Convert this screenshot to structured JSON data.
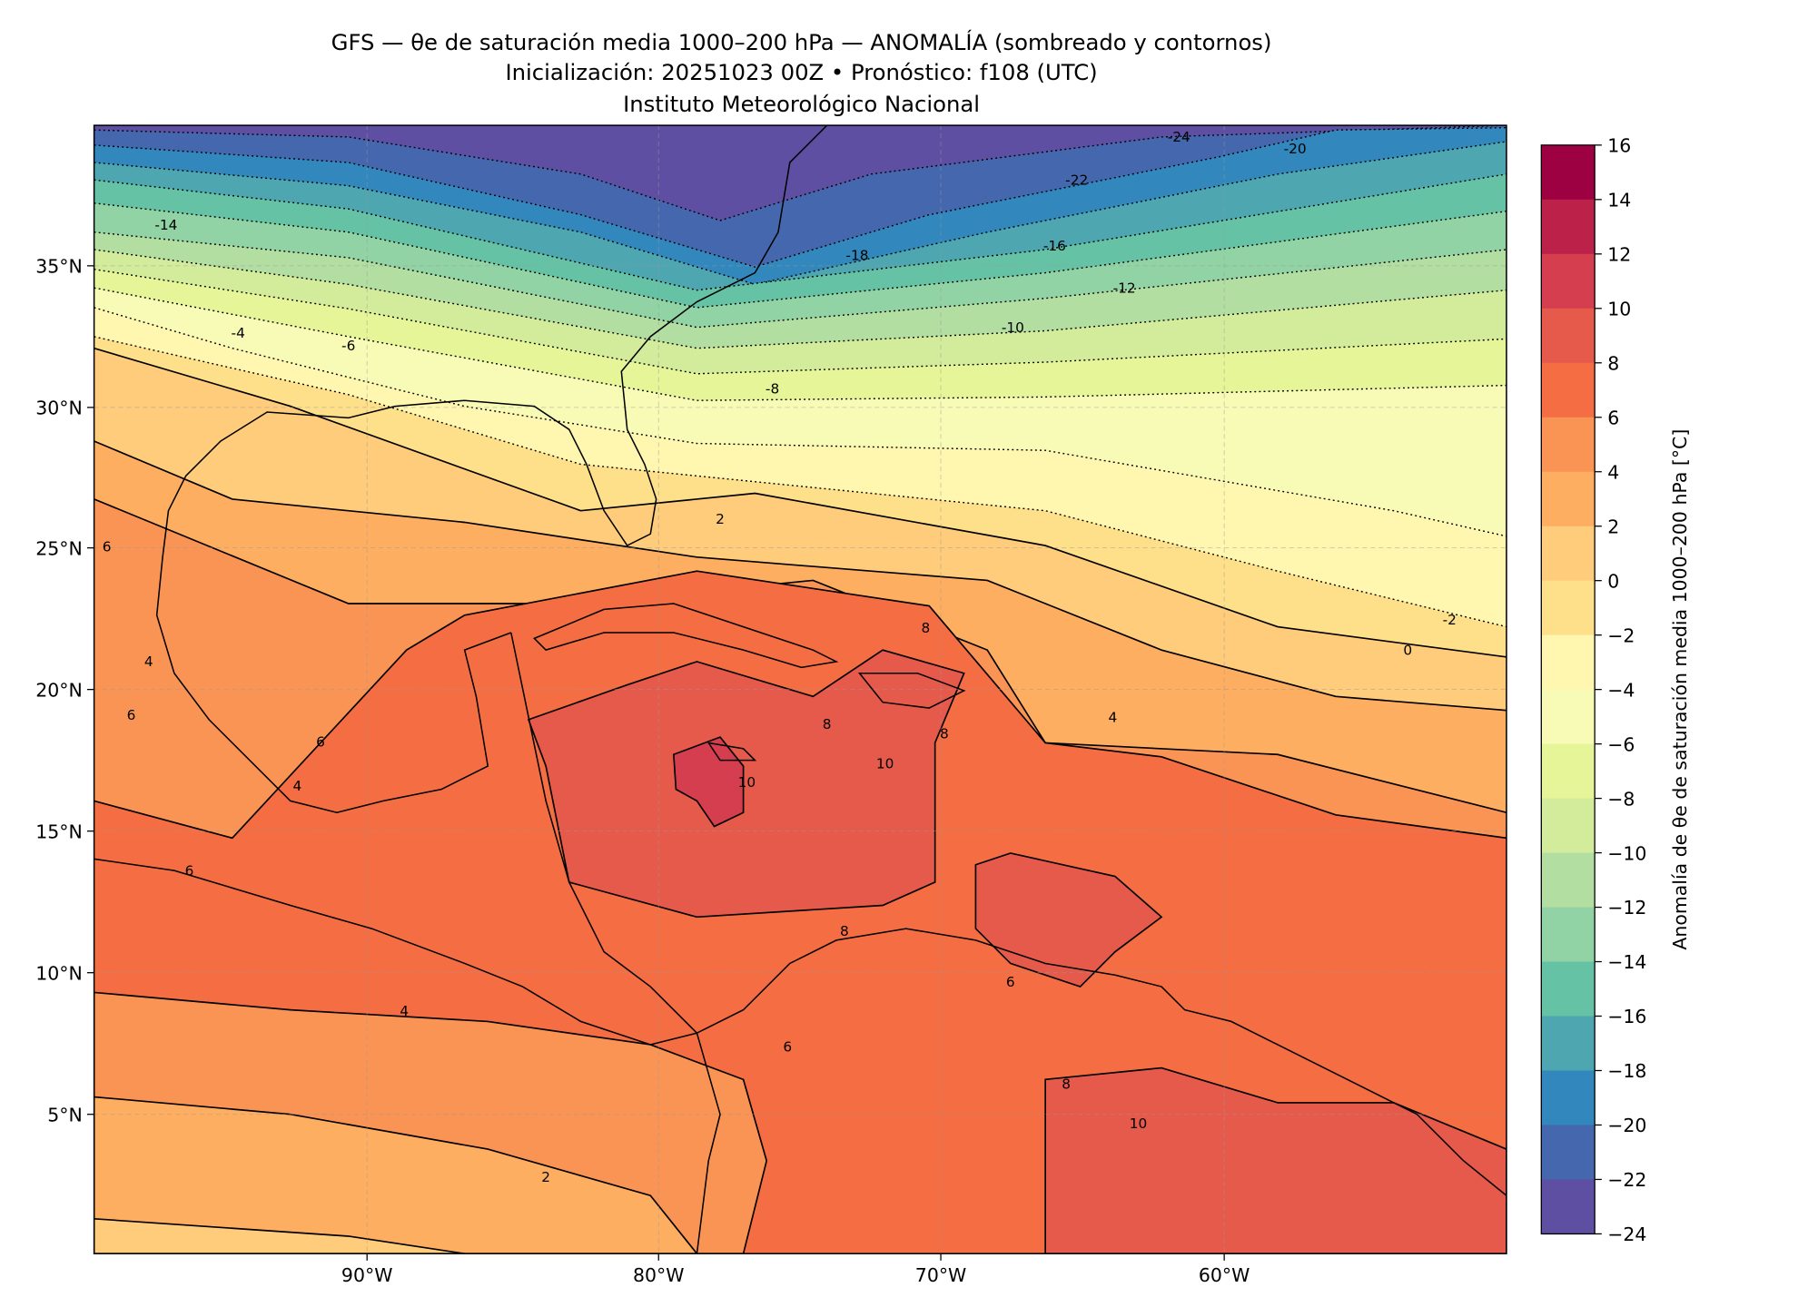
{
  "figure": {
    "title_line1": "GFS — θe de saturación media 1000–200 hPa — ANOMALÍA (sombreado y contornos)",
    "title_line2": "Inicialización: 20251023 00Z   •   Pronóstico: f108 (UTC)",
    "title_line3": "Instituto Meteorológico Nacional"
  },
  "chart_data": {
    "type": "heatmap",
    "subtype": "filled-contour map",
    "title": "GFS — θe de saturación media 1000–200 hPa — ANOMALÍA (sombreado y contornos)",
    "lon_range": [
      -100,
      -50
    ],
    "lat_range": [
      0,
      40
    ],
    "x_ticks": [
      "90°W",
      "80°W",
      "70°W",
      "60°W"
    ],
    "y_ticks": [
      "35°N",
      "30°N",
      "25°N",
      "20°N",
      "15°N",
      "10°N",
      "5°N"
    ],
    "grid": true,
    "colorbar": {
      "label": "Anomalía de θe de saturación media 1000–200 hPa [°C]",
      "range": [
        -24,
        16
      ],
      "ticks": [
        "16",
        "14",
        "12",
        "10",
        "8",
        "6",
        "4",
        "2",
        "0",
        "−2",
        "−4",
        "−6",
        "−8",
        "−10",
        "−12",
        "−14",
        "−16",
        "−18",
        "−20",
        "−22",
        "−24"
      ],
      "colors_top_to_bottom": [
        "#9e0142",
        "#bc2249",
        "#d53e4f",
        "#e65a4c",
        "#f46d43",
        "#f99455",
        "#fdae61",
        "#fecc7b",
        "#fee08b",
        "#fff6b0",
        "#f8fbb6",
        "#e6f598",
        "#d3ec9c",
        "#b2dea1",
        "#91d3a4",
        "#66c2a5",
        "#4ea6b0",
        "#3288bd",
        "#4467ad",
        "#5e4fa2"
      ]
    },
    "contour_labels": [
      "-24",
      "-22",
      "-20",
      "-18",
      "-16",
      "-14",
      "-12",
      "-10",
      "-8",
      "-6",
      "-4",
      "-2",
      "0",
      "2",
      "2",
      "4",
      "4",
      "4",
      "4",
      "6",
      "6",
      "6",
      "6",
      "6",
      "6",
      "8",
      "8",
      "8",
      "8",
      "8",
      "10",
      "10",
      "10"
    ]
  }
}
